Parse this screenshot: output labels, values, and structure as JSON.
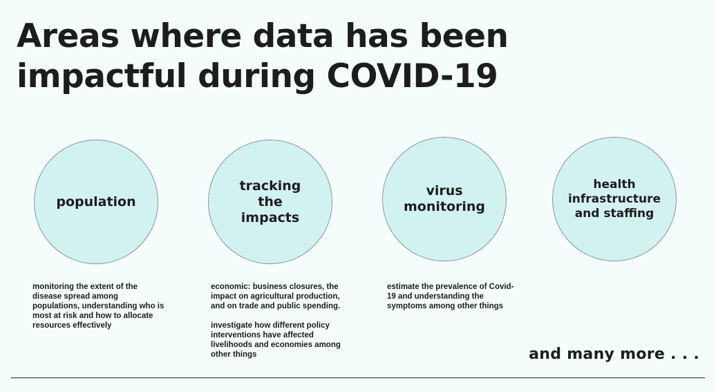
{
  "title": {
    "line1": "Areas where data has been",
    "line2": "impactful during COVID-19"
  },
  "areas": [
    {
      "label": "population",
      "description": [
        "monitoring the extent of the disease spread among populations, understanding who is most at risk and how to allocate resources effectively"
      ]
    },
    {
      "label": "tracking the impacts",
      "description": [
        "economic: business closures, the impact on agricultural production, and on trade and public spending.",
        "investigate how different policy interventions have affected livelihoods and economies among other things"
      ]
    },
    {
      "label": "virus monitoring",
      "description": [
        "estimate the prevalence of Covid-19 and understanding the symptoms among other things"
      ]
    },
    {
      "label": "health infrastructure and staffing",
      "description": []
    }
  ],
  "footer": {
    "more": "and many more . . ."
  },
  "colors": {
    "background": "#f4fcfc",
    "circle_fill": "#d2f2f1",
    "text": "#1d1d1d"
  }
}
